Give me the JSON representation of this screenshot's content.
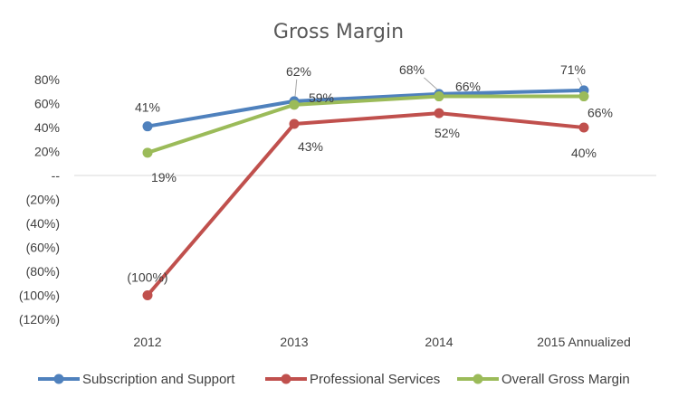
{
  "chart_data": {
    "type": "line",
    "title": "Gross Margin",
    "xlabel": "",
    "ylabel": "",
    "categories": [
      "2012",
      "2013",
      "2014",
      "2015 Annualized"
    ],
    "ylim": [
      -120,
      80
    ],
    "yticks": [
      80,
      60,
      40,
      20,
      0,
      -20,
      -40,
      -60,
      -80,
      -100,
      -120
    ],
    "ytick_labels": [
      "80%",
      "60%",
      "40%",
      "20%",
      "--",
      "(20%)",
      "(40%)",
      "(60%)",
      "(80%)",
      "(100%)",
      "(120%)"
    ],
    "grid": false,
    "legend_position": "bottom",
    "series": [
      {
        "name": "Subscription and Support",
        "color": "#4F81BD",
        "values": [
          41,
          62,
          68,
          71
        ],
        "labels": [
          "41%",
          "62%",
          "68%",
          "71%"
        ]
      },
      {
        "name": "Professional Services",
        "color": "#C0504D",
        "values": [
          -100,
          43,
          52,
          40
        ],
        "labels": [
          "(100%)",
          "43%",
          "52%",
          "40%"
        ]
      },
      {
        "name": "Overall Gross Margin",
        "color": "#9BBB59",
        "values": [
          19,
          59,
          66,
          66
        ],
        "labels": [
          "19%",
          "59%",
          "66%",
          "66%"
        ]
      }
    ]
  }
}
